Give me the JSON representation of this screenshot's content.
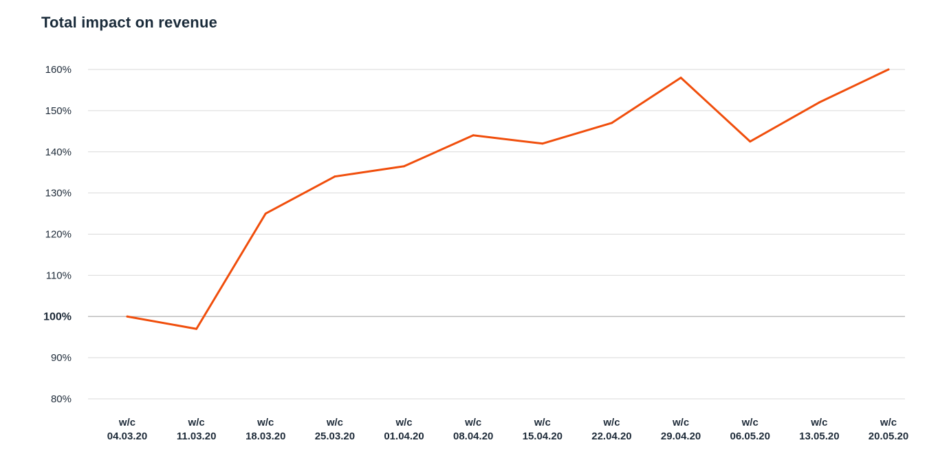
{
  "chart_data": {
    "type": "line",
    "title": "Total impact on revenue",
    "xlabel": "",
    "ylabel": "",
    "x_prefix": "w/c",
    "categories": [
      "04.03.20",
      "11.03.20",
      "18.03.20",
      "25.03.20",
      "01.04.20",
      "08.04.20",
      "15.04.20",
      "22.04.20",
      "29.04.20",
      "06.05.20",
      "13.05.20",
      "20.05.20"
    ],
    "series": [
      {
        "values": [
          100,
          97,
          125,
          134,
          136.5,
          144,
          142,
          147,
          158,
          142.5,
          152,
          160
        ]
      }
    ],
    "ylim": [
      80,
      160
    ],
    "yticks": [
      80,
      90,
      100,
      110,
      120,
      130,
      140,
      150,
      160
    ],
    "ytick_labels": [
      "80%",
      "90%",
      "100%",
      "110%",
      "120%",
      "130%",
      "140%",
      "150%",
      "160%"
    ],
    "highlight_tick": 100,
    "grid": true,
    "legend": "none",
    "line_color": "#f04e0c"
  }
}
